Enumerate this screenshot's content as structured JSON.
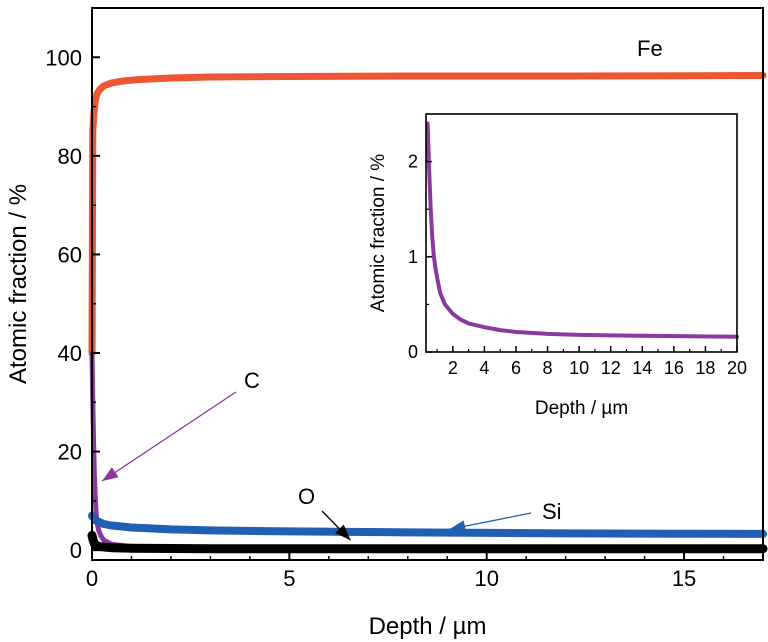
{
  "chart_data": [
    {
      "type": "line",
      "xlabel": "Depth / µm",
      "ylabel": "Atomic fraction / %",
      "xlim": [
        0,
        17
      ],
      "ylim": [
        -2,
        110
      ],
      "xticks": [
        "0",
        "5",
        "10",
        "15"
      ],
      "yticks": [
        "0",
        "20",
        "40",
        "60",
        "80",
        "100"
      ],
      "grid": false,
      "series": [
        {
          "name": "Fe",
          "color": "#ee5533",
          "x": [
            0,
            0.02,
            0.05,
            0.08,
            0.12,
            0.2,
            0.3,
            0.5,
            0.8,
            1.2,
            2,
            3,
            5,
            8,
            12,
            17
          ],
          "y": [
            40,
            85,
            89,
            91,
            92.5,
            93.5,
            94.2,
            94.8,
            95.2,
            95.5,
            95.8,
            96,
            96.1,
            96.2,
            96.2,
            96.3
          ]
        },
        {
          "name": "C",
          "color": "#8a3a9e",
          "x": [
            0,
            0.02,
            0.04,
            0.06,
            0.08,
            0.1,
            0.13,
            0.17,
            0.22,
            0.3,
            0.5,
            1,
            2,
            5,
            10,
            17
          ],
          "y": [
            40,
            30,
            22,
            15,
            11,
            8,
            5.5,
            4,
            3,
            2,
            1.2,
            0.7,
            0.4,
            0.25,
            0.2,
            0.17
          ]
        },
        {
          "name": "Si",
          "color": "#1f5fb4",
          "x": [
            0,
            0.05,
            0.1,
            0.3,
            0.5,
            1,
            2,
            3,
            5,
            8,
            12,
            17
          ],
          "y": [
            7,
            6.5,
            6,
            5.3,
            5,
            4.6,
            4.2,
            4,
            3.8,
            3.6,
            3.4,
            3.3
          ]
        },
        {
          "name": "O",
          "color": "#000000",
          "x": [
            0,
            0.03,
            0.06,
            0.1,
            0.2,
            0.5,
            1,
            3,
            8,
            17
          ],
          "y": [
            3,
            2,
            1.3,
            1,
            0.7,
            0.5,
            0.4,
            0.3,
            0.3,
            0.3
          ]
        }
      ],
      "annotations": [
        {
          "text": "Fe",
          "series": "Fe"
        },
        {
          "text": "C",
          "series": "C",
          "arrow_to": [
            0.1,
            14
          ]
        },
        {
          "text": "O",
          "series": "O",
          "arrow_to": [
            6.5,
            1
          ]
        },
        {
          "text": "Si",
          "series": "Si",
          "arrow_to": [
            9.2,
            3.8
          ]
        }
      ]
    },
    {
      "type": "line",
      "role": "inset",
      "xlabel": "Depth / µm",
      "ylabel": "Atomic fraction / %",
      "xlim": [
        0.3,
        20
      ],
      "ylim": [
        0,
        2.5
      ],
      "xticks": [
        "2",
        "4",
        "6",
        "8",
        "10",
        "12",
        "14",
        "16",
        "18",
        "20"
      ],
      "yticks": [
        "0",
        "1",
        "2"
      ],
      "series": [
        {
          "name": "C",
          "color": "#8a3a9e",
          "x": [
            0.4,
            0.5,
            0.6,
            0.7,
            0.8,
            0.9,
            1,
            1.2,
            1.5,
            2,
            2.5,
            3,
            4,
            5,
            6,
            8,
            10,
            14,
            20
          ],
          "y": [
            2.4,
            1.9,
            1.5,
            1.2,
            1.0,
            0.88,
            0.78,
            0.62,
            0.5,
            0.4,
            0.34,
            0.3,
            0.26,
            0.23,
            0.21,
            0.19,
            0.18,
            0.17,
            0.16
          ]
        }
      ]
    }
  ]
}
